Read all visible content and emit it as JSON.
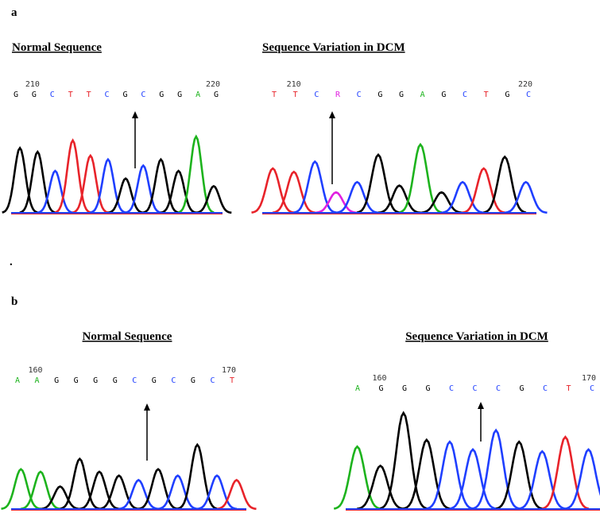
{
  "panels": [
    {
      "label": "a",
      "sequences": [
        {
          "title": "Normal Sequence",
          "start": "210",
          "end": "220",
          "bases": [
            {
              "letter": "G",
              "color": "#000000"
            },
            {
              "letter": "G",
              "color": "#000000"
            },
            {
              "letter": "C",
              "color": "#1f3fff"
            },
            {
              "letter": "T",
              "color": "#e8232a"
            },
            {
              "letter": "T",
              "color": "#e8232a"
            },
            {
              "letter": "C",
              "color": "#1f3fff"
            },
            {
              "letter": "G",
              "color": "#000000"
            },
            {
              "letter": "C",
              "color": "#1f3fff"
            },
            {
              "letter": "G",
              "color": "#000000"
            },
            {
              "letter": "G",
              "color": "#000000"
            },
            {
              "letter": "A",
              "color": "#1db31d"
            },
            {
              "letter": "G",
              "color": "#000000"
            }
          ]
        },
        {
          "title": "Sequence Variation in DCM",
          "start": "210",
          "end": "220",
          "bases": [
            {
              "letter": "T",
              "color": "#e8232a"
            },
            {
              "letter": "T",
              "color": "#e8232a"
            },
            {
              "letter": "C",
              "color": "#1f3fff"
            },
            {
              "letter": "R",
              "color": "#e020e0"
            },
            {
              "letter": "C",
              "color": "#1f3fff"
            },
            {
              "letter": "G",
              "color": "#000000"
            },
            {
              "letter": "G",
              "color": "#000000"
            },
            {
              "letter": "A",
              "color": "#1db31d"
            },
            {
              "letter": "G",
              "color": "#000000"
            },
            {
              "letter": "C",
              "color": "#1f3fff"
            },
            {
              "letter": "T",
              "color": "#e8232a"
            },
            {
              "letter": "G",
              "color": "#000000"
            },
            {
              "letter": "C",
              "color": "#1f3fff"
            }
          ]
        }
      ]
    },
    {
      "label": "b",
      "sequences": [
        {
          "title": "Normal Sequence",
          "start": "160",
          "end": "170",
          "bases": [
            {
              "letter": "A",
              "color": "#1db31d"
            },
            {
              "letter": "A",
              "color": "#1db31d"
            },
            {
              "letter": "G",
              "color": "#000000"
            },
            {
              "letter": "G",
              "color": "#000000"
            },
            {
              "letter": "G",
              "color": "#000000"
            },
            {
              "letter": "G",
              "color": "#000000"
            },
            {
              "letter": "C",
              "color": "#1f3fff"
            },
            {
              "letter": "G",
              "color": "#000000"
            },
            {
              "letter": "C",
              "color": "#1f3fff"
            },
            {
              "letter": "G",
              "color": "#000000"
            },
            {
              "letter": "C",
              "color": "#1f3fff"
            },
            {
              "letter": "T",
              "color": "#e8232a"
            }
          ]
        },
        {
          "title": "Sequence Variation in DCM",
          "start": "160",
          "end": "170",
          "bases": [
            {
              "letter": "A",
              "color": "#1db31d"
            },
            {
              "letter": "G",
              "color": "#000000"
            },
            {
              "letter": "G",
              "color": "#000000"
            },
            {
              "letter": "G",
              "color": "#000000"
            },
            {
              "letter": "C",
              "color": "#1f3fff"
            },
            {
              "letter": "C",
              "color": "#1f3fff"
            },
            {
              "letter": "C",
              "color": "#1f3fff"
            },
            {
              "letter": "G",
              "color": "#000000"
            },
            {
              "letter": "C",
              "color": "#1f3fff"
            },
            {
              "letter": "T",
              "color": "#e8232a"
            },
            {
              "letter": "C",
              "color": "#1f3fff"
            }
          ]
        }
      ]
    }
  ],
  "separator": "."
}
